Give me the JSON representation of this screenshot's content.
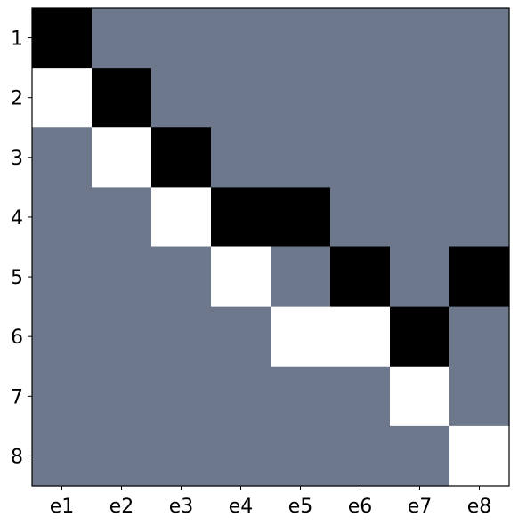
{
  "chart_data": {
    "type": "heatmap",
    "title": "",
    "xlabel": "",
    "ylabel": "",
    "x_categories": [
      "e1",
      "e2",
      "e3",
      "e4",
      "e5",
      "e6",
      "e7",
      "e8"
    ],
    "y_categories": [
      "1",
      "2",
      "3",
      "4",
      "5",
      "6",
      "7",
      "8"
    ],
    "value_colors": {
      "-1": "#000000",
      "0": "#6e788c",
      "1": "#ffffff"
    },
    "values": [
      [
        -1,
        0,
        0,
        0,
        0,
        0,
        0,
        0
      ],
      [
        1,
        -1,
        0,
        0,
        0,
        0,
        0,
        0
      ],
      [
        0,
        1,
        -1,
        0,
        0,
        0,
        0,
        0
      ],
      [
        0,
        0,
        1,
        -1,
        -1,
        0,
        0,
        0
      ],
      [
        0,
        0,
        0,
        1,
        0,
        -1,
        0,
        -1
      ],
      [
        0,
        0,
        0,
        0,
        1,
        1,
        -1,
        0
      ],
      [
        0,
        0,
        0,
        0,
        0,
        0,
        1,
        0
      ],
      [
        0,
        0,
        0,
        0,
        0,
        0,
        0,
        1
      ]
    ],
    "grid": false,
    "legend": "none"
  }
}
